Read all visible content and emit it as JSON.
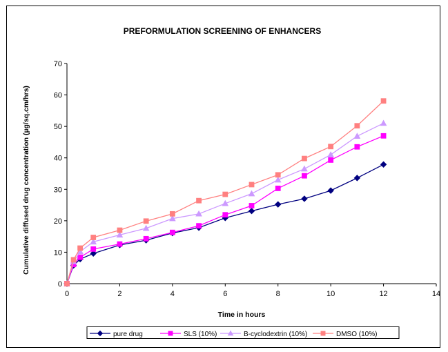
{
  "chart_data": {
    "type": "line",
    "title": "PREFORMULATION SCREENING OF ENHANCERS",
    "xlabel": "Time in hours",
    "ylabel": "Cumulative diffused drug concentration (µg/sq.cm/hrs)",
    "xlim": [
      0,
      14
    ],
    "ylim": [
      0,
      70
    ],
    "xticks": [
      0,
      2,
      4,
      6,
      8,
      10,
      12,
      14
    ],
    "yticks": [
      0,
      10,
      20,
      30,
      40,
      50,
      60,
      70
    ],
    "grid": false,
    "legend_position": "bottom",
    "x": [
      0,
      0.25,
      0.5,
      1,
      2,
      3,
      4,
      5,
      6,
      7,
      8,
      9,
      10,
      11,
      12
    ],
    "series": [
      {
        "name": "pure drug",
        "color": "#000080",
        "marker": "diamond",
        "values": [
          0,
          5.8,
          7.8,
          9.6,
          12.3,
          13.8,
          16.1,
          17.8,
          20.9,
          23.1,
          25.2,
          27.0,
          29.6,
          33.6,
          37.9
        ]
      },
      {
        "name": "SLS (10%)",
        "color": "#FF00FF",
        "marker": "square",
        "values": [
          0,
          6.1,
          8.4,
          11.0,
          12.6,
          14.3,
          16.3,
          18.4,
          21.9,
          24.8,
          30.3,
          34.3,
          39.3,
          43.5,
          47.0
        ]
      },
      {
        "name": "B-cyclodextrin (10%)",
        "color": "#CC99FF",
        "marker": "triangle",
        "values": [
          0,
          7.0,
          10.2,
          13.3,
          15.5,
          17.6,
          20.7,
          22.2,
          25.5,
          28.6,
          33.0,
          36.5,
          41.0,
          46.9,
          51.0
        ]
      },
      {
        "name": "DMSO (10%)",
        "color": "#FF8080",
        "marker": "square",
        "values": [
          0,
          7.6,
          11.3,
          14.7,
          17.0,
          19.9,
          22.2,
          26.4,
          28.4,
          31.5,
          34.6,
          39.8,
          43.6,
          50.2,
          58.1
        ]
      }
    ]
  }
}
